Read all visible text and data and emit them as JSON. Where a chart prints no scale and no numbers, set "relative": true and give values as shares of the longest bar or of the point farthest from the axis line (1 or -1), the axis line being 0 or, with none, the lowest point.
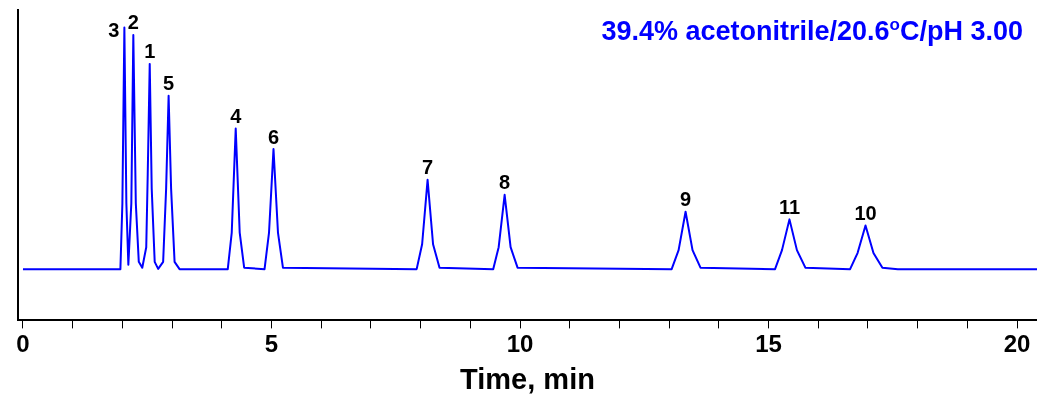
{
  "chart_data": {
    "type": "line",
    "relative": true,
    "xlabel": "Time, min",
    "xlim": [
      -0.1,
      20.4
    ],
    "xticks": [
      0,
      {
        "value": 1,
        "label": null
      },
      {
        "value": 2,
        "label": null
      },
      {
        "value": 3,
        "label": null
      },
      {
        "value": 4,
        "label": null
      },
      5,
      {
        "value": 6,
        "label": null
      },
      {
        "value": 7,
        "label": null
      },
      {
        "value": 8,
        "label": null
      },
      {
        "value": 9,
        "label": null
      },
      10,
      {
        "value": 11,
        "label": null
      },
      {
        "value": 12,
        "label": null
      },
      {
        "value": 13,
        "label": null
      },
      {
        "value": 14,
        "label": null
      },
      15,
      {
        "value": 16,
        "label": null
      },
      {
        "value": 17,
        "label": null
      },
      {
        "value": 18,
        "label": null
      },
      {
        "value": 19,
        "label": null
      },
      20
    ],
    "grid": false,
    "legend": false,
    "marker": "none",
    "line_style": "solid",
    "series": [
      {
        "color": "#0000ff",
        "x": [
          0,
          1.96,
          2.0,
          2.04,
          2.08,
          2.12,
          2.18,
          2.22,
          2.27,
          2.33,
          2.4,
          2.48,
          2.51,
          2.55,
          2.59,
          2.65,
          2.72,
          2.82,
          2.88,
          2.93,
          2.98,
          3.05,
          3.15,
          4.12,
          4.2,
          4.28,
          4.36,
          4.45,
          4.86,
          4.95,
          5.04,
          5.13,
          5.23,
          7.92,
          8.03,
          8.14,
          8.25,
          8.38,
          9.46,
          9.57,
          9.69,
          9.81,
          9.95,
          13.05,
          13.19,
          13.33,
          13.47,
          13.63,
          15.13,
          15.27,
          15.42,
          15.57,
          15.74,
          16.64,
          16.79,
          16.95,
          17.11,
          17.29,
          17.6,
          20.4
        ],
        "values": [
          0.175,
          0.175,
          0.4,
          1.0,
          0.4,
          0.19,
          0.4,
          0.975,
          0.4,
          0.2,
          0.18,
          0.25,
          0.5,
          0.876,
          0.45,
          0.2,
          0.176,
          0.2,
          0.45,
          0.767,
          0.45,
          0.2,
          0.175,
          0.175,
          0.3,
          0.655,
          0.3,
          0.18,
          0.175,
          0.3,
          0.585,
          0.3,
          0.18,
          0.175,
          0.26,
          0.48,
          0.26,
          0.18,
          0.175,
          0.25,
          0.429,
          0.25,
          0.18,
          0.175,
          0.24,
          0.371,
          0.24,
          0.18,
          0.175,
          0.24,
          0.345,
          0.24,
          0.18,
          0.175,
          0.23,
          0.324,
          0.23,
          0.18,
          0.175,
          0.175
        ]
      }
    ],
    "annotations": [
      "39.4% acetonitrile/20.6$^{o}$C/pH 3.00",
      {
        "text": "3",
        "x": 2.04,
        "y": 1.0
      },
      {
        "text": "2",
        "x": 2.22,
        "y": 0.975
      },
      {
        "text": "1",
        "x": 2.55,
        "y": 0.876
      },
      {
        "text": "5",
        "x": 2.93,
        "y": 0.767
      },
      {
        "text": "4",
        "x": 4.28,
        "y": 0.655
      },
      {
        "text": "6",
        "x": 5.04,
        "y": 0.585
      },
      {
        "text": "7",
        "x": 8.14,
        "y": 0.48
      },
      {
        "text": "8",
        "x": 9.69,
        "y": 0.429
      },
      {
        "text": "9",
        "x": 13.33,
        "y": 0.371
      },
      {
        "text": "11",
        "x": 15.42,
        "y": 0.345
      },
      {
        "text": "10",
        "x": 16.95,
        "y": 0.324
      }
    ]
  }
}
